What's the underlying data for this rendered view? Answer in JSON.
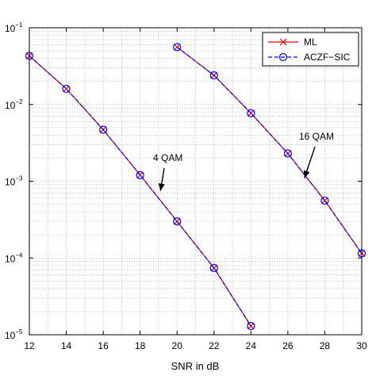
{
  "chart_data": {
    "type": "line",
    "xlabel": "SNR in dB",
    "ylabel": "",
    "x_ticks": [
      "12",
      "14",
      "16",
      "18",
      "20",
      "22",
      "24",
      "26",
      "28",
      "30"
    ],
    "y_ticks": [
      {
        "base": "10",
        "exp": "−5"
      },
      {
        "base": "10",
        "exp": "−4"
      },
      {
        "base": "10",
        "exp": "−3"
      },
      {
        "base": "10",
        "exp": "−2"
      },
      {
        "base": "10",
        "exp": "−1"
      }
    ],
    "xlim": [
      12,
      30
    ],
    "ylim": [
      1e-05,
      0.1
    ],
    "yscale": "log",
    "grid": true,
    "legend_position": "top-right",
    "series": [
      {
        "name": "ML",
        "color": "#ff0000",
        "marker": "x",
        "curves": [
          {
            "x": [
              12,
              14,
              16,
              18,
              20,
              22,
              24
            ],
            "y": [
              0.043,
              0.016,
              0.0047,
              0.0012,
              0.0003,
              7.4e-05,
              1.3e-05
            ]
          },
          {
            "x": [
              20,
              22,
              24,
              26,
              28,
              30
            ],
            "y": [
              0.056,
              0.024,
              0.0077,
              0.0023,
              0.00056,
              0.000115
            ]
          }
        ]
      },
      {
        "name": "ACZF−SIC",
        "color": "#0000ff",
        "marker": "o",
        "dash": true,
        "curves": [
          {
            "x": [
              12,
              14,
              16,
              18,
              20,
              22,
              24
            ],
            "y": [
              0.043,
              0.016,
              0.0047,
              0.0012,
              0.0003,
              7.4e-05,
              1.3e-05
            ]
          },
          {
            "x": [
              20,
              22,
              24,
              26,
              28,
              30
            ],
            "y": [
              0.056,
              0.024,
              0.0077,
              0.0023,
              0.00056,
              0.000115
            ]
          }
        ]
      }
    ],
    "annotations": [
      {
        "text": "4 QAM",
        "arrow_to": [
          19.1,
          0.00075
        ]
      },
      {
        "text": "16 QAM",
        "arrow_to": [
          26.9,
          0.0011
        ]
      }
    ]
  }
}
